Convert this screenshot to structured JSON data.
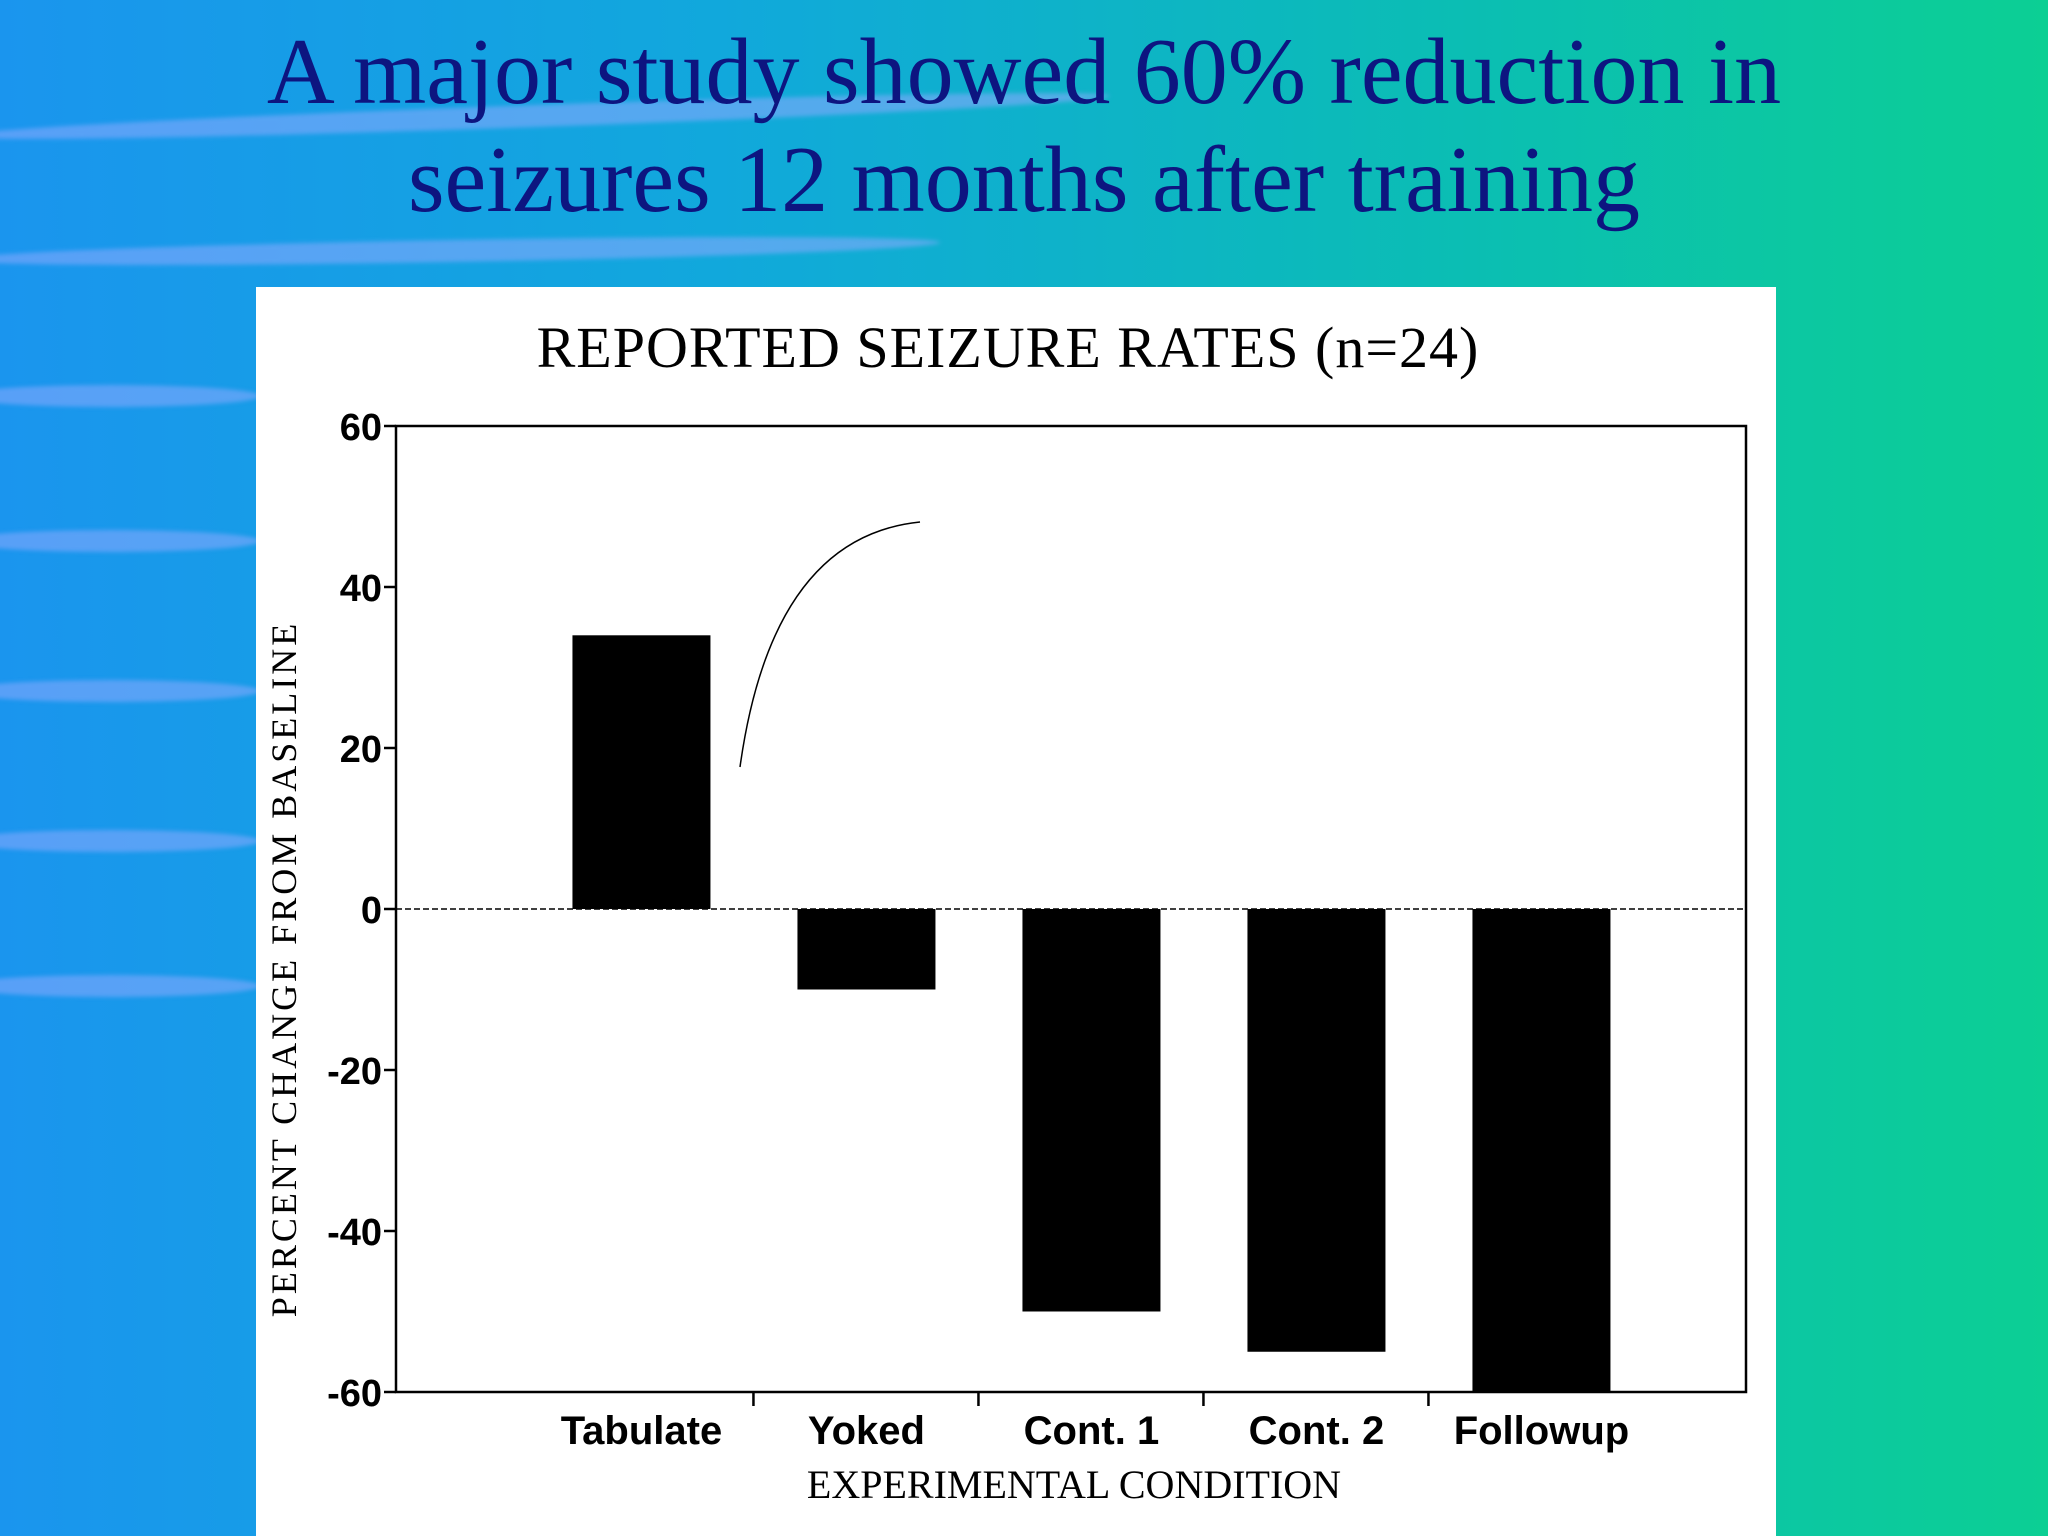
{
  "slide": {
    "title_line1": "A major study showed 60% reduction in",
    "title_line2": "seizures 12 months after training"
  },
  "chart_data": {
    "type": "bar",
    "title": "REPORTED SEIZURE RATES (n=24)",
    "xlabel": "EXPERIMENTAL CONDITION",
    "ylabel": "PERCENT CHANGE FROM BASELINE",
    "categories": [
      "Tabulate",
      "Yoked",
      "Cont. 1",
      "Cont. 2",
      "Followup"
    ],
    "values": [
      34,
      -10,
      -50,
      -55,
      -60
    ],
    "ylim": [
      -60,
      60
    ],
    "yticks": [
      60,
      40,
      20,
      0,
      -20,
      -40,
      -60
    ],
    "bar_color": "#000000",
    "grid": false,
    "legend": "none"
  }
}
